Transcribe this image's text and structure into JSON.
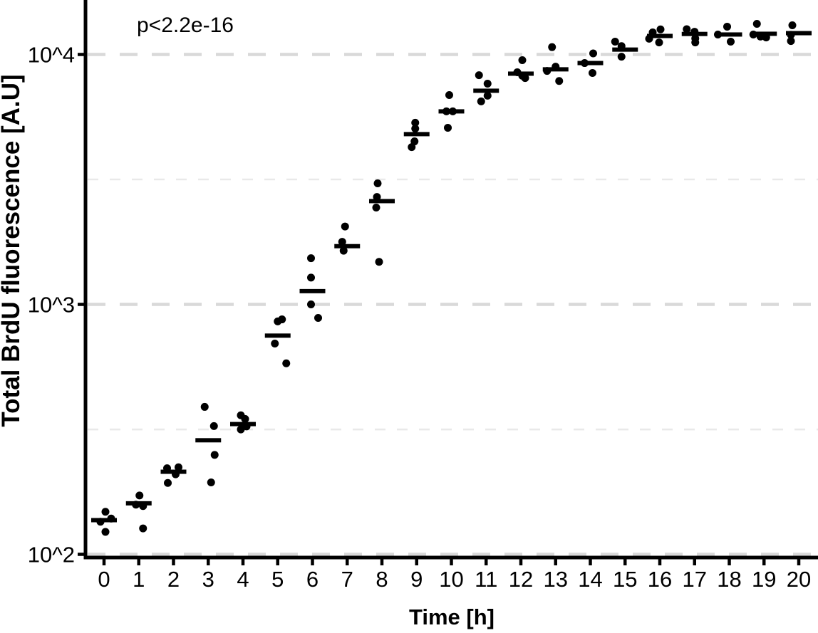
{
  "chart_data": {
    "type": "scatter",
    "subtype": "strip-plot-with-median-bars",
    "title": "",
    "xlabel": "Time [h]",
    "ylabel": "Total BrdU fluorescence [A.U]",
    "annotation": "p<2.2e-16",
    "y_scale": "log10",
    "xlim": [
      -0.55,
      20.5
    ],
    "ylim": [
      100,
      16600
    ],
    "grid": "dashed horizontal at half-decades",
    "legend": "none",
    "x_ticks": [
      "0",
      "1",
      "2",
      "3",
      "4",
      "5",
      "6",
      "7",
      "8",
      "9",
      "10",
      "11",
      "12",
      "13",
      "14",
      "15",
      "16",
      "17",
      "18",
      "19",
      "20"
    ],
    "y_ticks": [
      {
        "label": "10^2",
        "value": 100
      },
      {
        "label": "10^3",
        "value": 1000
      },
      {
        "label": "10^4",
        "value": 10000
      }
    ],
    "gridlines": [
      {
        "value": 100,
        "major": true
      },
      {
        "value": 316,
        "major": false
      },
      {
        "value": 1000,
        "major": true
      },
      {
        "value": 3162,
        "major": false
      },
      {
        "value": 10000,
        "major": true
      }
    ],
    "colors": {
      "point": "#000000",
      "median_bar": "#000000",
      "axis": "#000000",
      "grid_major": "#d9d9d9",
      "grid_minor": "#e9e9e9",
      "background": "#ffffff"
    },
    "groups": [
      {
        "t": 0,
        "median": 137,
        "points": [
          {
            "dx": 2,
            "v": 148
          },
          {
            "dx": 10,
            "v": 139
          },
          {
            "dx": -5,
            "v": 135
          },
          {
            "dx": 2,
            "v": 123
          }
        ]
      },
      {
        "t": 1,
        "median": 160,
        "points": [
          {
            "dx": 1,
            "v": 172
          },
          {
            "dx": -4,
            "v": 158
          },
          {
            "dx": 6,
            "v": 156
          },
          {
            "dx": 6,
            "v": 127
          }
        ]
      },
      {
        "t": 2,
        "median": 214,
        "points": [
          {
            "dx": 7,
            "v": 223
          },
          {
            "dx": -9,
            "v": 221
          },
          {
            "dx": 3,
            "v": 209
          },
          {
            "dx": -8,
            "v": 193
          }
        ]
      },
      {
        "t": 3,
        "median": 286,
        "points": [
          {
            "dx": -5,
            "v": 389
          },
          {
            "dx": 8,
            "v": 326
          },
          {
            "dx": 9,
            "v": 250
          },
          {
            "dx": 4,
            "v": 194
          }
        ]
      },
      {
        "t": 4,
        "median": 332,
        "points": [
          {
            "dx": -3,
            "v": 360
          },
          {
            "dx": 3,
            "v": 348
          },
          {
            "dx": 5,
            "v": 325
          },
          {
            "dx": -3,
            "v": 316
          }
        ]
      },
      {
        "t": 5,
        "median": 750,
        "points": [
          {
            "dx": 6,
            "v": 871
          },
          {
            "dx": 0,
            "v": 855
          },
          {
            "dx": -4,
            "v": 697
          },
          {
            "dx": 12,
            "v": 581
          }
        ]
      },
      {
        "t": 6,
        "median": 1130,
        "points": [
          {
            "dx": -2,
            "v": 1530
          },
          {
            "dx": -2,
            "v": 1280
          },
          {
            "dx": -2,
            "v": 1000
          },
          {
            "dx": 8,
            "v": 883
          }
        ]
      },
      {
        "t": 7,
        "median": 1710,
        "points": [
          {
            "dx": -3,
            "v": 2050
          },
          {
            "dx": -7,
            "v": 1780
          },
          {
            "dx": -5,
            "v": 1640
          }
        ]
      },
      {
        "t": 8,
        "median": 2590,
        "points": [
          {
            "dx": -6,
            "v": 3050
          },
          {
            "dx": -7,
            "v": 2690
          },
          {
            "dx": -8,
            "v": 2440
          },
          {
            "dx": -4,
            "v": 1480
          }
        ]
      },
      {
        "t": 9,
        "median": 4800,
        "points": [
          {
            "dx": -2,
            "v": 5330
          },
          {
            "dx": -2,
            "v": 5050
          },
          {
            "dx": -3,
            "v": 4490
          },
          {
            "dx": -7,
            "v": 4260
          }
        ]
      },
      {
        "t": 10,
        "median": 5920,
        "points": [
          {
            "dx": -3,
            "v": 6880
          },
          {
            "dx": -7,
            "v": 5920
          },
          {
            "dx": 2,
            "v": 5920
          },
          {
            "dx": -5,
            "v": 5090
          }
        ]
      },
      {
        "t": 11,
        "median": 7160,
        "points": [
          {
            "dx": -10,
            "v": 8260
          },
          {
            "dx": 2,
            "v": 7640
          },
          {
            "dx": 2,
            "v": 6840
          },
          {
            "dx": -7,
            "v": 6490
          }
        ]
      },
      {
        "t": 12,
        "median": 8380,
        "points": [
          {
            "dx": 2,
            "v": 9490
          },
          {
            "dx": -5,
            "v": 8490
          },
          {
            "dx": 2,
            "v": 8220
          },
          {
            "dx": 6,
            "v": 8050
          }
        ]
      },
      {
        "t": 13,
        "median": 8720,
        "points": [
          {
            "dx": -5,
            "v": 10700
          },
          {
            "dx": 0,
            "v": 8940
          },
          {
            "dx": -12,
            "v": 8590
          },
          {
            "dx": 5,
            "v": 7830
          }
        ]
      },
      {
        "t": 14,
        "median": 9240,
        "points": [
          {
            "dx": 4,
            "v": 10100
          },
          {
            "dx": -8,
            "v": 9240
          },
          {
            "dx": 3,
            "v": 8430
          }
        ]
      },
      {
        "t": 15,
        "median": 10460,
        "points": [
          {
            "dx": -14,
            "v": 11250
          },
          {
            "dx": -5,
            "v": 10800
          },
          {
            "dx": -5,
            "v": 9800
          }
        ]
      },
      {
        "t": 16,
        "median": 11860,
        "points": [
          {
            "dx": 1,
            "v": 12600
          },
          {
            "dx": -10,
            "v": 12260
          },
          {
            "dx": -15,
            "v": 11560
          },
          {
            "dx": -1,
            "v": 11170
          }
        ]
      },
      {
        "t": 17,
        "median": 12080,
        "points": [
          {
            "dx": -11,
            "v": 12620
          },
          {
            "dx": 0,
            "v": 12330
          },
          {
            "dx": 1,
            "v": 11590
          },
          {
            "dx": 1,
            "v": 11170
          }
        ]
      },
      {
        "t": 18,
        "median": 12020,
        "points": [
          {
            "dx": -3,
            "v": 12920
          },
          {
            "dx": -16,
            "v": 12020
          },
          {
            "dx": 2,
            "v": 11250
          }
        ]
      },
      {
        "t": 19,
        "median": 12100,
        "points": [
          {
            "dx": -10,
            "v": 13260
          },
          {
            "dx": -15,
            "v": 12020
          },
          {
            "dx": -5,
            "v": 11790
          },
          {
            "dx": 3,
            "v": 11700
          }
        ]
      },
      {
        "t": 20,
        "median": 12170,
        "points": [
          {
            "dx": -9,
            "v": 13090
          },
          {
            "dx": -11,
            "v": 11990
          },
          {
            "dx": -11,
            "v": 11320
          }
        ]
      }
    ]
  }
}
